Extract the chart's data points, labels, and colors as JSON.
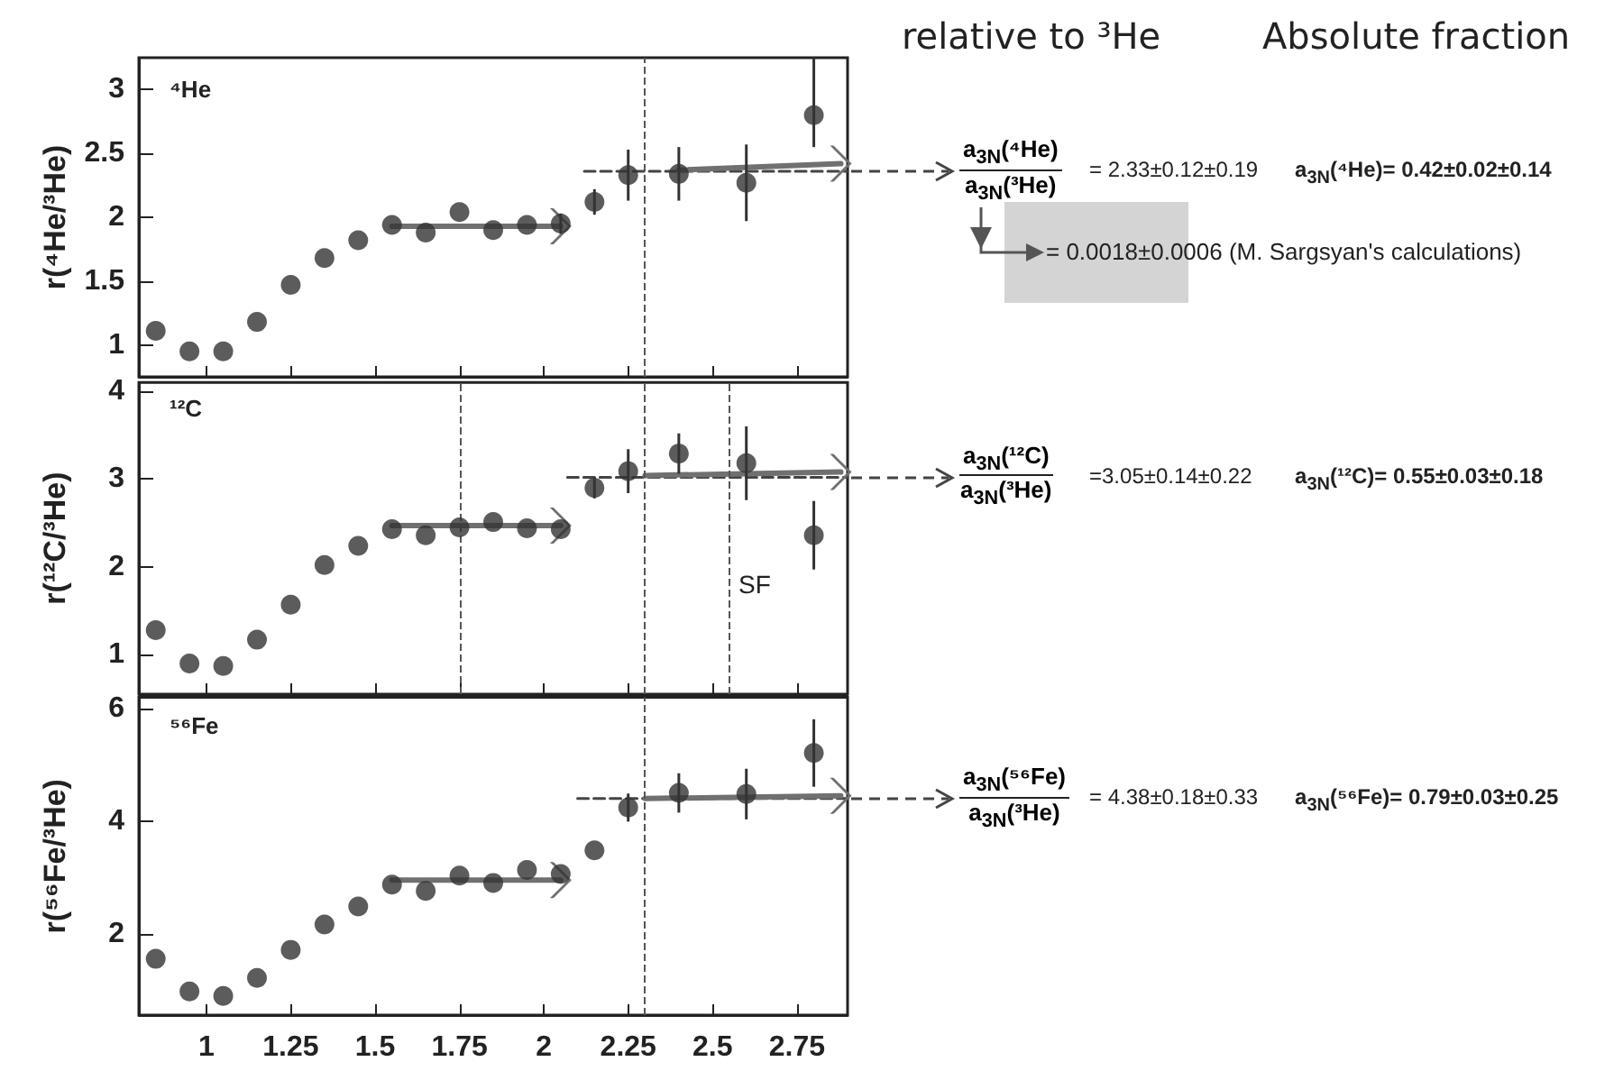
{
  "chart_data": [
    {
      "type": "scatter",
      "title": "⁴He",
      "ylabel": "r(⁴He/³He)",
      "xlim": [
        0.8,
        2.9
      ],
      "xticks": [
        1,
        1.25,
        1.5,
        1.75,
        2,
        2.25,
        2.5,
        2.75
      ],
      "ylim": [
        0.75,
        3.25
      ],
      "yticks": [
        1,
        1.5,
        2,
        2.5,
        3
      ],
      "tick_labels": "y",
      "marker": "none",
      "x": [
        0.85,
        0.95,
        1.05,
        1.15,
        1.25,
        1.35,
        1.45,
        1.55,
        1.65,
        1.75,
        1.85,
        1.95,
        2.05,
        2.15,
        2.25,
        2.4,
        2.6,
        2.8
      ],
      "series": [
        {
          "marker": "circle",
          "color": "#333333",
          "values": [
            1.11,
            0.95,
            0.95,
            1.18,
            1.47,
            1.68,
            1.82,
            1.94,
            1.88,
            2.04,
            1.9,
            1.94,
            1.95,
            2.12,
            2.33,
            2.34,
            2.27,
            2.8
          ],
          "errors": [
            null,
            null,
            null,
            null,
            null,
            null,
            null,
            null,
            null,
            null,
            null,
            null,
            0.08,
            0.1,
            0.2,
            0.21,
            0.3,
            [
              2.55,
              3.25
            ]
          ]
        },
        {
          "type": "line",
          "color": "#707070",
          "x": [
            1.55,
            2.05
          ],
          "values": [
            1.93,
            1.93
          ]
        },
        {
          "type": "line",
          "color": "#444444",
          "line_style": "dashed",
          "x": [
            2.12,
            2.9
          ],
          "values": [
            2.36,
            2.36
          ]
        },
        {
          "type": "line",
          "color": "#707070",
          "x": [
            2.4,
            2.88
          ],
          "values": [
            2.37,
            2.42
          ]
        }
      ],
      "ref_lines": [
        {
          "axis": "x",
          "value": 2.3,
          "line_style": "dashed",
          "color": "#555555"
        }
      ],
      "annotations": [
        "relative to ³He",
        "Absolute fraction",
        "a$_{3N}$(⁴He)",
        "a$_{3N}$(³He)",
        "= 2.33±0.12±0.19",
        "a$_{3N}$(⁴He)= 0.42±0.02±0.14",
        "= 0.0018±0.0006 (M. Sargsyan's calculations)"
      ]
    },
    {
      "type": "scatter",
      "title": "¹²C",
      "ylabel": "r(¹²C/³He)",
      "xlim": [
        0.8,
        2.9
      ],
      "xticks": [
        1,
        1.25,
        1.5,
        1.75,
        2,
        2.25,
        2.5,
        2.75
      ],
      "ylim": [
        0.55,
        4.1
      ],
      "yticks": [
        1,
        2,
        3,
        4
      ],
      "tick_labels": "y",
      "marker": "none",
      "x": [
        0.85,
        0.95,
        1.05,
        1.15,
        1.25,
        1.35,
        1.45,
        1.55,
        1.65,
        1.75,
        1.85,
        1.95,
        2.05,
        2.15,
        2.25,
        2.4,
        2.6,
        2.8
      ],
      "series": [
        {
          "marker": "circle",
          "color": "#333333",
          "values": [
            1.28,
            0.9,
            0.87,
            1.17,
            1.57,
            2.02,
            2.24,
            2.43,
            2.36,
            2.45,
            2.51,
            2.44,
            2.43,
            2.9,
            3.09,
            3.29,
            3.18,
            2.36
          ],
          "errors": [
            null,
            null,
            null,
            null,
            null,
            null,
            null,
            null,
            null,
            null,
            null,
            null,
            null,
            0.12,
            0.25,
            0.23,
            0.42,
            0.39
          ]
        },
        {
          "type": "line",
          "color": "#707070",
          "x": [
            1.55,
            2.05
          ],
          "values": [
            2.47,
            2.47
          ]
        },
        {
          "type": "line",
          "color": "#444444",
          "line_style": "dashed",
          "x": [
            2.07,
            2.9
          ],
          "values": [
            3.02,
            3.02
          ]
        },
        {
          "type": "line",
          "color": "#707070",
          "x": [
            2.3,
            2.88
          ],
          "values": [
            3.04,
            3.08
          ]
        }
      ],
      "ref_lines": [
        {
          "axis": "x",
          "value": 2.3,
          "line_style": "dashed",
          "color": "#555555"
        },
        {
          "axis": "x",
          "value": 1.75,
          "line_style": "dashed",
          "color": "#555555"
        },
        {
          "axis": "x",
          "value": 2.55,
          "line_style": "dashed",
          "color": "#555555"
        }
      ],
      "annotations": [
        "a$_{3N}$(¹²C)",
        "a$_{3N}$(³He)",
        "=3.05±0.14±0.22",
        "a$_{3N}$(¹²C)= 0.55±0.03±0.18",
        {
          "text": "SF",
          "x": 2.55,
          "y": 1.8
        }
      ]
    },
    {
      "type": "scatter",
      "title": "⁵⁶Fe",
      "ylabel": "r(⁵⁶Fe/³He)",
      "xlim": [
        0.8,
        2.9
      ],
      "xticks": [
        1,
        1.25,
        1.5,
        1.75,
        2,
        2.25,
        2.5,
        2.75
      ],
      "ylim": [
        0.55,
        6.2
      ],
      "yticks": [
        2,
        4,
        6
      ],
      "marker": "none",
      "x": [
        0.85,
        0.95,
        1.05,
        1.15,
        1.25,
        1.35,
        1.45,
        1.55,
        1.65,
        1.75,
        1.85,
        1.95,
        2.05,
        2.15,
        2.25,
        2.4,
        2.6,
        2.8
      ],
      "series": [
        {
          "marker": "circle",
          "color": "#333333",
          "values": [
            1.55,
            0.97,
            0.89,
            1.21,
            1.71,
            2.16,
            2.48,
            2.87,
            2.76,
            3.03,
            2.9,
            3.13,
            3.06,
            3.48,
            4.24,
            4.5,
            4.48,
            5.21
          ],
          "errors": [
            null,
            null,
            null,
            null,
            null,
            null,
            null,
            null,
            null,
            null,
            null,
            null,
            null,
            null,
            0.25,
            0.35,
            0.45,
            0.6
          ]
        },
        {
          "type": "line",
          "color": "#707070",
          "x": [
            1.55,
            2.05
          ],
          "values": [
            2.95,
            2.95
          ]
        },
        {
          "type": "line",
          "color": "#444444",
          "line_style": "dashed",
          "x": [
            2.1,
            2.9
          ],
          "values": [
            4.4,
            4.4
          ]
        },
        {
          "type": "line",
          "color": "#707070",
          "x": [
            2.3,
            2.88
          ],
          "values": [
            4.4,
            4.45
          ]
        }
      ],
      "ref_lines": [
        {
          "axis": "x",
          "value": 2.3,
          "line_style": "dashed",
          "color": "#555555"
        }
      ],
      "annotations": [
        "a$_{3N}$(⁵⁶Fe)",
        "a$_{3N}$(³He)",
        "= 4.38±0.18±0.33",
        "a$_{3N}$(⁵⁶Fe)= 0.79±0.03±0.25"
      ]
    }
  ]
}
